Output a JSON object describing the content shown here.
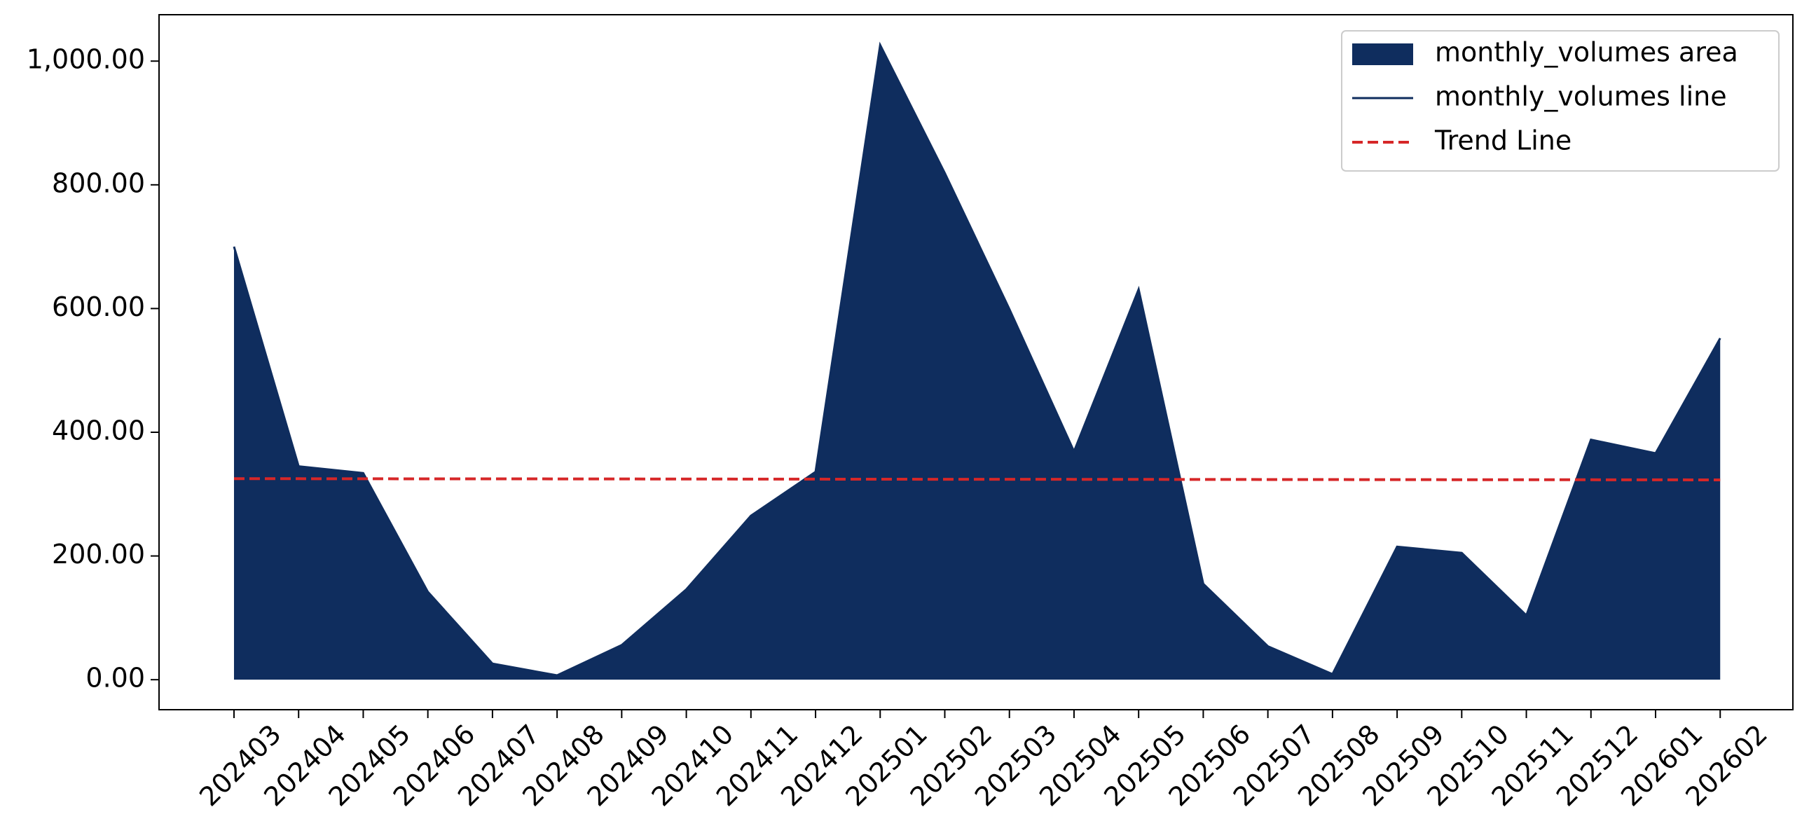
{
  "chart_data": {
    "type": "area",
    "categories": [
      "202403",
      "202404",
      "202405",
      "202406",
      "202407",
      "202408",
      "202409",
      "202410",
      "202411",
      "202412",
      "202501",
      "202502",
      "202503",
      "202504",
      "202505",
      "202506",
      "202507",
      "202508",
      "202509",
      "202510",
      "202511",
      "202512",
      "202601",
      "202602"
    ],
    "series": [
      {
        "name": "monthly_volumes area",
        "type": "area",
        "color": "#0f2d5e",
        "values": [
          700,
          345,
          334,
          142,
          26,
          7,
          56,
          146,
          265,
          336,
          1026,
          819,
          599,
          369,
          631,
          155,
          54,
          9,
          215,
          205,
          104,
          388,
          366,
          552
        ]
      },
      {
        "name": "monthly_volumes line",
        "type": "line",
        "color": "#0f2d5e",
        "values": [
          700,
          345,
          334,
          142,
          26,
          7,
          56,
          146,
          265,
          336,
          1026,
          819,
          599,
          369,
          631,
          155,
          54,
          9,
          215,
          205,
          104,
          388,
          366,
          552
        ]
      },
      {
        "name": "Trend Line",
        "type": "line",
        "dashed": true,
        "color": "#d62728",
        "values": [
          325.0,
          324.9,
          324.8,
          324.7,
          324.7,
          324.6,
          324.5,
          324.4,
          324.3,
          324.2,
          324.1,
          324.0,
          324.0,
          323.9,
          323.8,
          323.7,
          323.6,
          323.5,
          323.4,
          323.3,
          323.3,
          323.2,
          323.1,
          323.0
        ]
      }
    ],
    "ylim": [
      -48.5,
      1075
    ],
    "yticks": [
      {
        "value": 0,
        "label": "0.00"
      },
      {
        "value": 200,
        "label": "200.00"
      },
      {
        "value": 400,
        "label": "400.00"
      },
      {
        "value": 600,
        "label": "600.00"
      },
      {
        "value": 800,
        "label": "800.00"
      },
      {
        "value": 1000,
        "label": "1,000.00"
      }
    ],
    "grid": false,
    "legend": "upper right"
  }
}
